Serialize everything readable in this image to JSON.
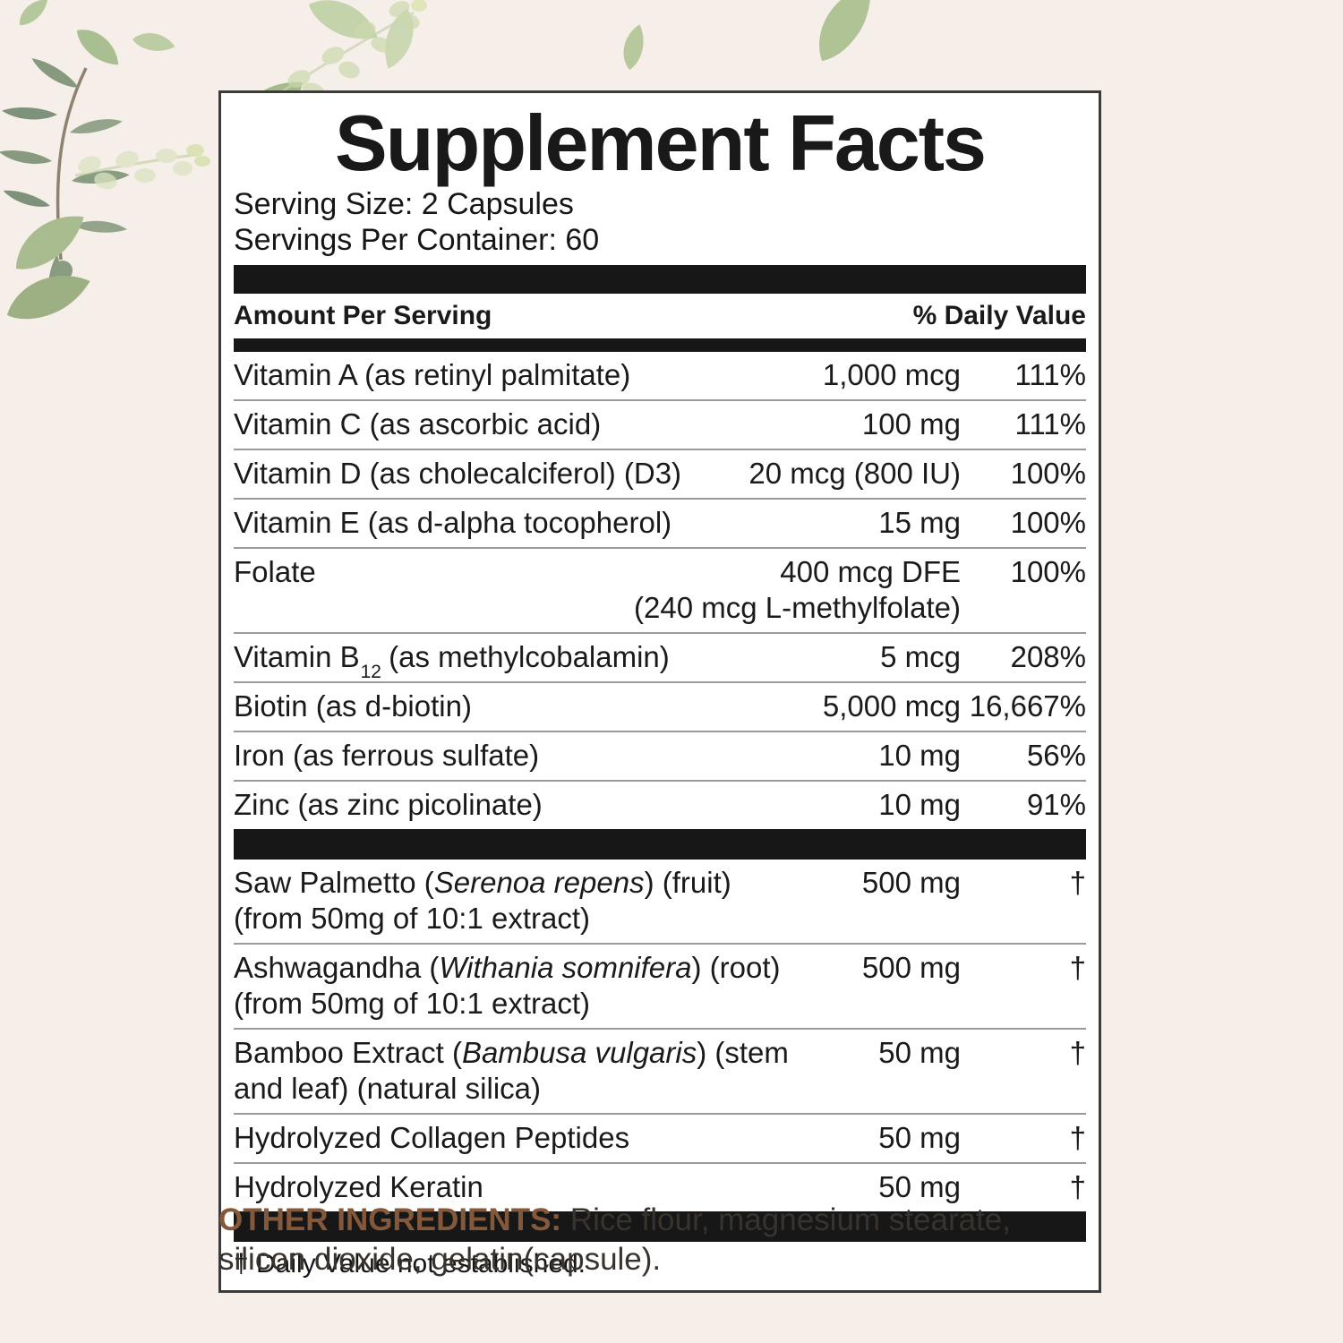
{
  "panel": {
    "title": "Supplement Facts",
    "serving_size": "Serving Size: 2 Capsules",
    "servings_per_container": "Servings Per Container: 60",
    "columns": {
      "amount_header": "Amount Per Serving",
      "dv_header": "% Daily Value"
    },
    "vitamin_rows": [
      {
        "name": [
          {
            "t": "Vitamin A (as retinyl palmitate)"
          }
        ],
        "amount": "1,000 mcg",
        "dv": "111%"
      },
      {
        "name": [
          {
            "t": "Vitamin C (as ascorbic acid)"
          }
        ],
        "amount": "100 mg",
        "dv": "111%"
      },
      {
        "name": [
          {
            "t": "Vitamin D (as cholecalciferol) (D3)"
          }
        ],
        "amount": "20 mcg (800 IU)",
        "dv": "100%"
      },
      {
        "name": [
          {
            "t": "Vitamin E (as d-alpha tocopherol)"
          }
        ],
        "amount": "15 mg",
        "dv": "100%"
      },
      {
        "name": [
          {
            "t": "Folate"
          }
        ],
        "amount": "400 mcg DFE",
        "dv": "100%",
        "subline": "(240 mcg L-methylfolate)",
        "subline_align": "amount"
      },
      {
        "name": [
          {
            "t": "Vitamin B"
          },
          {
            "sub": "12"
          },
          {
            "t": " (as methylcobalamin)"
          }
        ],
        "amount": "5 mcg",
        "dv": "208%"
      },
      {
        "name": [
          {
            "t": "Biotin (as d-biotin)"
          }
        ],
        "amount": "5,000 mcg",
        "dv": "16,667%"
      },
      {
        "name": [
          {
            "t": "Iron (as ferrous sulfate)"
          }
        ],
        "amount": "10 mg",
        "dv": "56%"
      },
      {
        "name": [
          {
            "t": "Zinc (as zinc picolinate)"
          }
        ],
        "amount": "10 mg",
        "dv": "91%"
      }
    ],
    "botanical_rows": [
      {
        "name": [
          {
            "t": "Saw Palmetto ("
          },
          {
            "i": "Serenoa repens"
          },
          {
            "t": ") (fruit)"
          }
        ],
        "amount": "500 mg",
        "dv": "†",
        "subline": "(from 50mg of 10:1 extract)",
        "subline_align": "left"
      },
      {
        "name": [
          {
            "t": "Ashwagandha ("
          },
          {
            "i": "Withania somnifera"
          },
          {
            "t": ") (root)"
          }
        ],
        "amount": "500 mg",
        "dv": "†",
        "subline": "(from 50mg of 10:1 extract)",
        "subline_align": "left"
      },
      {
        "name": [
          {
            "t": "Bamboo Extract ("
          },
          {
            "i": "Bambusa vulgaris"
          },
          {
            "t": ") (stem and leaf) (natural silica)"
          }
        ],
        "amount": "50 mg",
        "dv": "†"
      },
      {
        "name": [
          {
            "t": "Hydrolyzed Collagen Peptides"
          }
        ],
        "amount": "50 mg",
        "dv": "†"
      },
      {
        "name": [
          {
            "t": "Hydrolyzed Keratin"
          }
        ],
        "amount": "50 mg",
        "dv": "†"
      }
    ],
    "footnote": "† Daily Value not established."
  },
  "other_ingredients": {
    "label": "OTHER INGREDIENTS:",
    "text": " Rice flour, magnesium stearate, silicon dioxide, gelatin(capsule)."
  },
  "colors": {
    "background": "#f6eee8",
    "panel_border": "#3b3b3b",
    "bar_black": "#171717",
    "divider_gray": "#9a9a9a",
    "accent_brown": "#84583b",
    "leaf_sage": "#a9bf92",
    "leaf_gray_green": "#87997f",
    "leaf_pale": "#dbe3bf"
  }
}
